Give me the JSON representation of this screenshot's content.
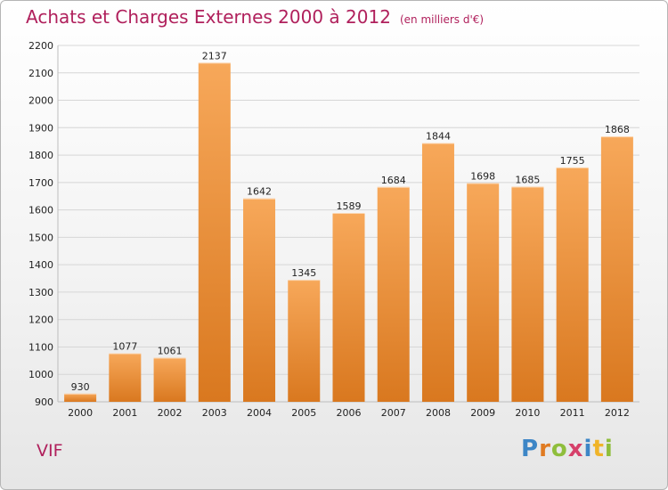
{
  "header": {
    "title": "Achats et Charges Externes 2000 à 2012",
    "unit": "(en milliers d'€)"
  },
  "place_label": "VIF",
  "logo": {
    "text": "Proxiti",
    "letter_colors": [
      "#3d86c6",
      "#e07b22",
      "#8fbe3c",
      "#d6406a",
      "#3d86c6",
      "#f0b429",
      "#8fbe3c"
    ]
  },
  "colors": {
    "bar_top": "#f7a85a",
    "bar_bottom": "#d9781f",
    "grid": "#d6d6d6",
    "title": "#b0205c"
  },
  "chart_data": {
    "type": "bar",
    "title": "Achats et Charges Externes 2000 à 2012",
    "subtitle": "(en milliers d'€)",
    "xlabel": "",
    "ylabel": "",
    "categories": [
      "2000",
      "2001",
      "2002",
      "2003",
      "2004",
      "2005",
      "2006",
      "2007",
      "2008",
      "2009",
      "2010",
      "2011",
      "2012"
    ],
    "values": [
      930,
      1077,
      1061,
      2137,
      1642,
      1345,
      1589,
      1684,
      1844,
      1698,
      1685,
      1755,
      1868
    ],
    "ylim": [
      900,
      2200
    ],
    "yticks": [
      900,
      1000,
      1100,
      1200,
      1300,
      1400,
      1500,
      1600,
      1700,
      1800,
      1900,
      2000,
      2100,
      2200
    ],
    "grid": true,
    "data_labels": true
  }
}
